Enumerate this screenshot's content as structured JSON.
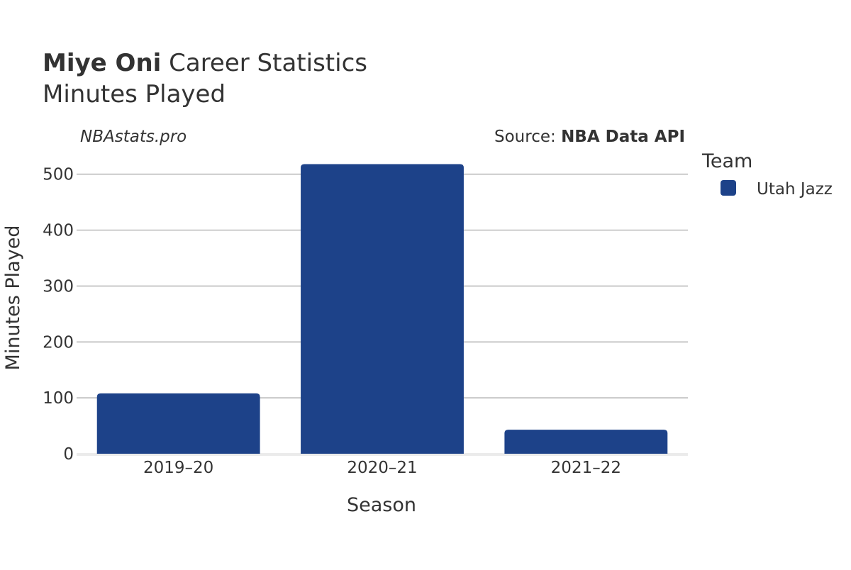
{
  "chart_data": {
    "type": "bar",
    "title_bold": "Miye Oni",
    "title_rest": " Career Statistics",
    "subtitle": "Minutes Played",
    "watermark": "NBAstats.pro",
    "source_prefix": "Source: ",
    "source_name": "NBA Data API",
    "xlabel": "Season",
    "ylabel": "Minutes Played",
    "categories": [
      "2019–20",
      "2020–21",
      "2021–22"
    ],
    "series": [
      {
        "name": "Utah Jazz",
        "color": "#1d4289",
        "values": [
          108,
          518,
          43
        ]
      }
    ],
    "ylim": [
      0,
      530
    ],
    "yticks": [
      0,
      100,
      200,
      300,
      400,
      500
    ],
    "grid": true,
    "legend_title": "Team",
    "legend_position": "right"
  }
}
